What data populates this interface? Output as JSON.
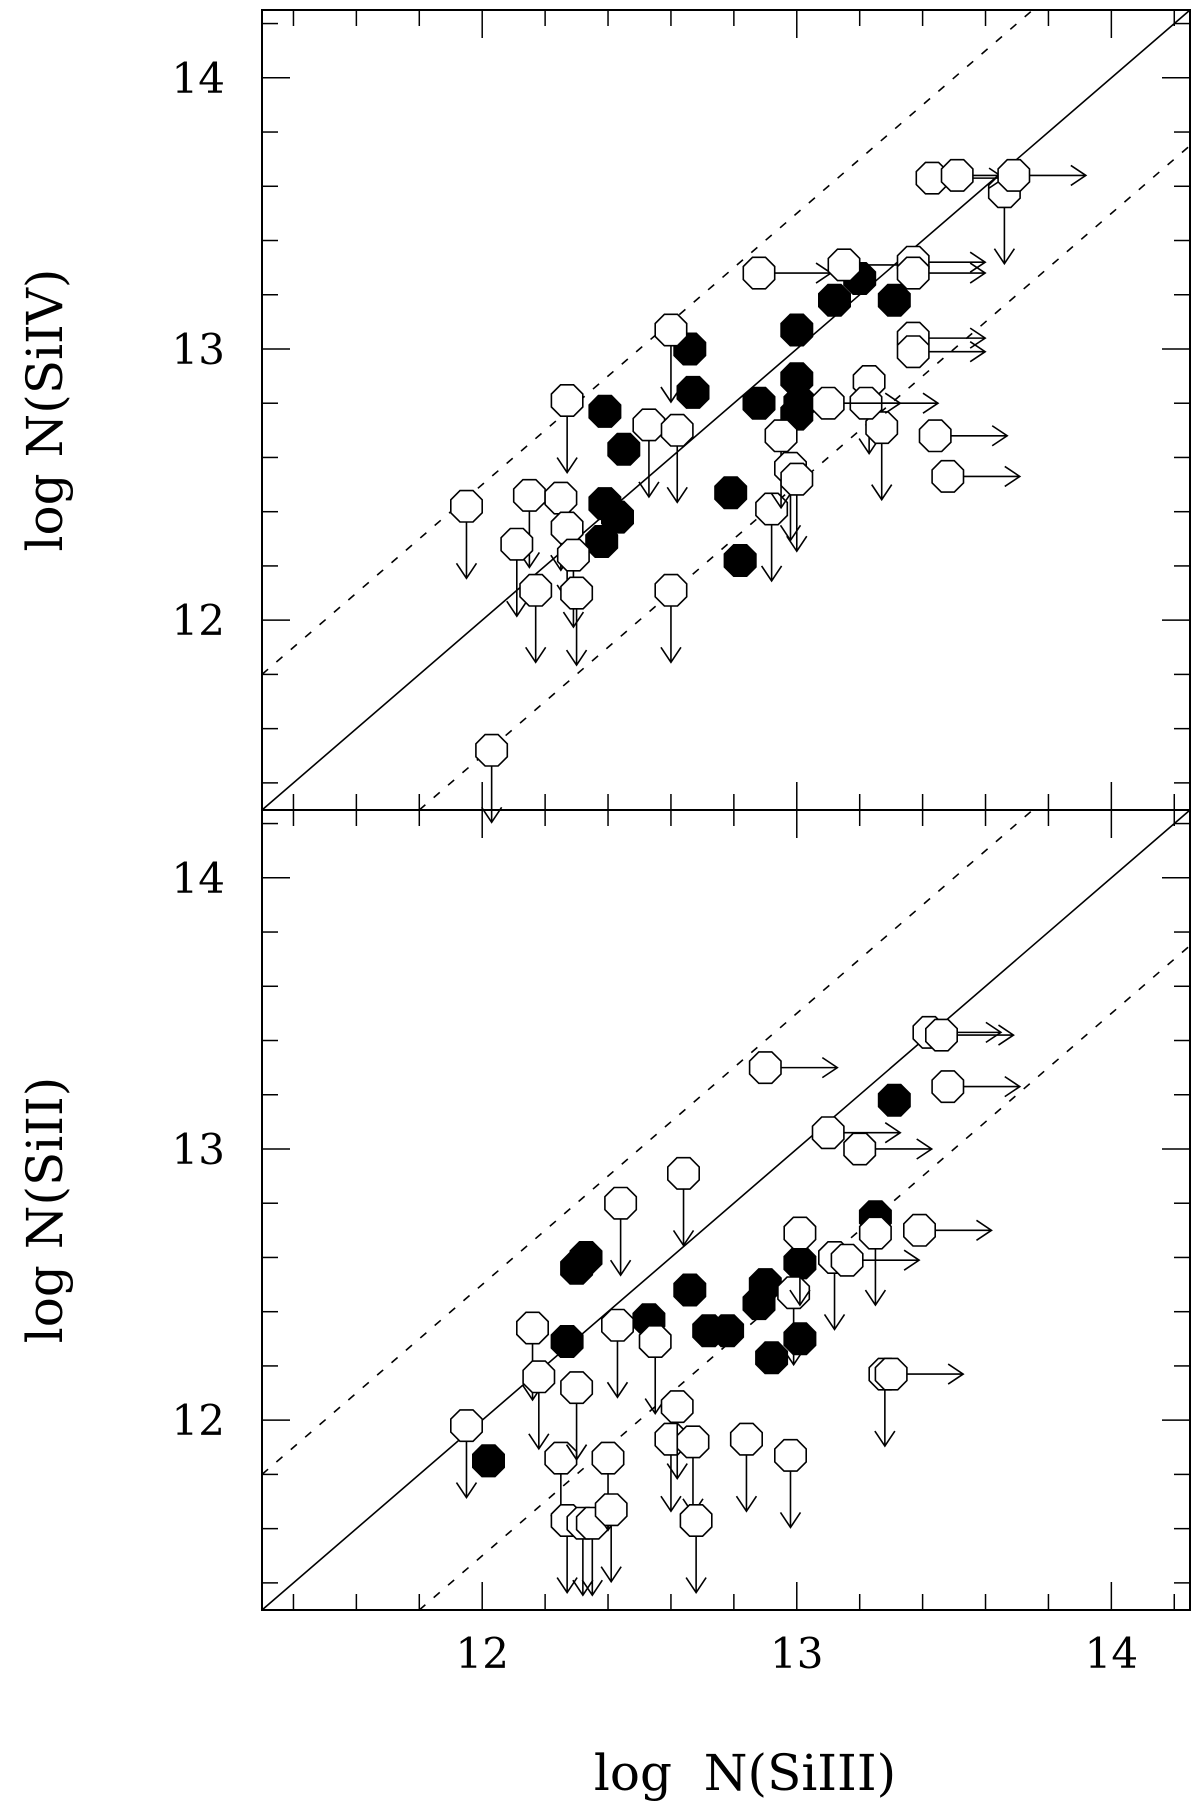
{
  "chart_data": [
    {
      "type": "scatter",
      "panel": "top",
      "xlabel": "log  N(SiIII)",
      "ylabel": "log  N(SiIV)",
      "xlim": [
        11.3,
        14.25
      ],
      "ylim": [
        11.3,
        14.25
      ],
      "xticks": [
        "12",
        "13",
        "14"
      ],
      "yticks": [
        "12",
        "13",
        "14"
      ],
      "reference_lines": [
        {
          "style": "solid",
          "slope": 1,
          "intercept": 0
        },
        {
          "style": "dashed",
          "slope": 1,
          "intercept": 0.5
        },
        {
          "style": "dashed",
          "slope": 1,
          "intercept": -0.5
        }
      ],
      "series": [
        {
          "marker": "filled-octagon",
          "points": [
            [
              12.39,
              12.77
            ],
            [
              12.45,
              12.63
            ],
            [
              12.39,
              12.43
            ],
            [
              12.43,
              12.38
            ],
            [
              12.38,
              12.29
            ],
            [
              12.66,
              13.0
            ],
            [
              12.67,
              12.84
            ],
            [
              12.79,
              12.47
            ],
            [
              12.82,
              12.22
            ],
            [
              12.88,
              12.8
            ],
            [
              13.0,
              13.07
            ],
            [
              13.0,
              12.89
            ],
            [
              13.01,
              12.8
            ],
            [
              13.0,
              12.76
            ],
            [
              13.12,
              13.18
            ],
            [
              13.2,
              13.26
            ],
            [
              13.31,
              13.18
            ]
          ]
        },
        {
          "marker": "open-octagon",
          "limit": "upper-y",
          "points": [
            [
              11.95,
              12.42
            ],
            [
              12.15,
              12.46
            ],
            [
              12.11,
              12.28
            ],
            [
              12.17,
              12.11
            ],
            [
              12.25,
              12.45
            ],
            [
              12.27,
              12.34
            ],
            [
              12.29,
              12.24
            ],
            [
              12.3,
              12.1
            ],
            [
              12.27,
              12.81
            ],
            [
              12.53,
              12.72
            ],
            [
              12.6,
              13.07
            ],
            [
              12.62,
              12.7
            ],
            [
              12.6,
              12.11
            ],
            [
              12.92,
              12.41
            ],
            [
              12.95,
              12.68
            ],
            [
              12.98,
              12.56
            ],
            [
              13.0,
              12.52
            ],
            [
              13.23,
              12.88
            ],
            [
              13.27,
              12.71
            ],
            [
              13.66,
              13.58
            ],
            [
              12.03,
              11.52
            ]
          ]
        },
        {
          "marker": "open-octagon",
          "limit": "lower-x",
          "points": [
            [
              12.88,
              13.28
            ],
            [
              13.15,
              13.31
            ],
            [
              13.22,
              12.8
            ],
            [
              13.37,
              13.32
            ],
            [
              13.37,
              13.28
            ],
            [
              13.37,
              13.04
            ],
            [
              13.37,
              12.99
            ],
            [
              13.43,
              13.63
            ],
            [
              13.51,
              13.64
            ],
            [
              13.69,
              13.64
            ],
            [
              13.44,
              12.68
            ],
            [
              13.48,
              12.53
            ],
            [
              13.1,
              12.8
            ]
          ]
        }
      ]
    },
    {
      "type": "scatter",
      "panel": "bottom",
      "xlabel": "log  N(SiIII)",
      "ylabel": "log  N(SiII)",
      "xlim": [
        11.3,
        14.25
      ],
      "ylim": [
        11.3,
        14.25
      ],
      "xticks": [
        "12",
        "13",
        "14"
      ],
      "yticks": [
        "12",
        "13",
        "14"
      ],
      "reference_lines": [
        {
          "style": "solid",
          "slope": 1,
          "intercept": 0
        },
        {
          "style": "dashed",
          "slope": 1,
          "intercept": 0.5
        },
        {
          "style": "dashed",
          "slope": 1,
          "intercept": -0.5
        }
      ],
      "series": [
        {
          "marker": "filled-octagon",
          "points": [
            [
              12.02,
              11.85
            ],
            [
              12.27,
              12.29
            ],
            [
              12.3,
              12.56
            ],
            [
              12.33,
              12.6
            ],
            [
              12.53,
              12.37
            ],
            [
              12.66,
              12.48
            ],
            [
              12.72,
              12.33
            ],
            [
              12.78,
              12.33
            ],
            [
              12.88,
              12.43
            ],
            [
              12.9,
              12.5
            ],
            [
              12.92,
              12.23
            ],
            [
              13.01,
              12.58
            ],
            [
              13.01,
              12.3
            ],
            [
              13.25,
              12.75
            ],
            [
              13.31,
              13.18
            ]
          ]
        },
        {
          "marker": "open-octagon",
          "limit": "upper-y",
          "points": [
            [
              11.95,
              11.98
            ],
            [
              12.16,
              12.34
            ],
            [
              12.18,
              12.16
            ],
            [
              12.25,
              11.86
            ],
            [
              12.27,
              11.63
            ],
            [
              12.3,
              12.12
            ],
            [
              12.32,
              11.62
            ],
            [
              12.35,
              11.62
            ],
            [
              12.4,
              11.86
            ],
            [
              12.41,
              11.67
            ],
            [
              12.43,
              12.35
            ],
            [
              12.44,
              12.8
            ],
            [
              12.55,
              12.29
            ],
            [
              12.6,
              11.93
            ],
            [
              12.62,
              12.05
            ],
            [
              12.64,
              12.91
            ],
            [
              12.67,
              11.92
            ],
            [
              12.68,
              11.63
            ],
            [
              12.84,
              11.93
            ],
            [
              12.98,
              11.87
            ],
            [
              12.99,
              12.47
            ],
            [
              13.01,
              12.69
            ],
            [
              13.12,
              12.6
            ],
            [
              13.25,
              12.69
            ],
            [
              13.28,
              12.17
            ]
          ]
        },
        {
          "marker": "open-octagon",
          "limit": "lower-x",
          "points": [
            [
              12.9,
              13.3
            ],
            [
              13.1,
              13.06
            ],
            [
              13.2,
              13.0
            ],
            [
              13.42,
              13.43
            ],
            [
              13.46,
              13.42
            ],
            [
              13.48,
              13.23
            ],
            [
              13.39,
              12.7
            ],
            [
              13.16,
              12.59
            ],
            [
              13.3,
              12.17
            ]
          ]
        }
      ]
    }
  ]
}
